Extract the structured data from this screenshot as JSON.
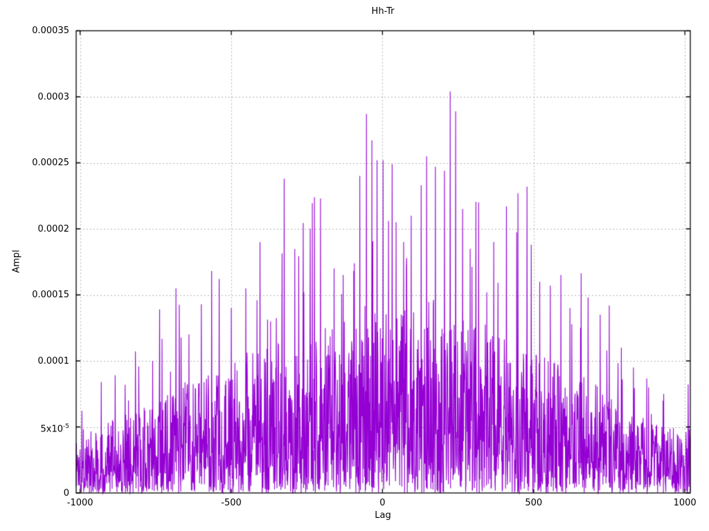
{
  "title": "Hh-Tr",
  "chart_data": {
    "type": "line",
    "style": "dense noisy impulse-like trace (autocorrelation magnitude)",
    "title": "Hh-Tr",
    "xlabel": "Lag",
    "ylabel": "Ampl",
    "xlim": [
      -1013,
      1018
    ],
    "ylim": [
      0,
      0.00035
    ],
    "x_ticks": [
      {
        "v": -1000,
        "label": "-1000"
      },
      {
        "v": -500,
        "label": "-500"
      },
      {
        "v": 0,
        "label": "0"
      },
      {
        "v": 500,
        "label": "500"
      },
      {
        "v": 1000,
        "label": "1000"
      }
    ],
    "y_ticks": [
      {
        "v": 0,
        "label": "0"
      },
      {
        "v": 5e-05,
        "label": "5x10^-5"
      },
      {
        "v": 0.0001,
        "label": "0.0001"
      },
      {
        "v": 0.00015,
        "label": "0.00015"
      },
      {
        "v": 0.0002,
        "label": "0.0002"
      },
      {
        "v": 0.00025,
        "label": "0.00025"
      },
      {
        "v": 0.0003,
        "label": "0.0003"
      },
      {
        "v": 0.00035,
        "label": "0.00035"
      }
    ],
    "grid": true,
    "legend": "none",
    "line_color": "#9400d3",
    "grid_color": "#b2b2b2",
    "border_color": "#000000",
    "background_color": "#ffffff",
    "n_points": 2032,
    "seed": 1337,
    "noise_exponent": 1.35,
    "spike_probability": 0.02,
    "envelope_keypoints": [
      [
        -1015,
        5e-05
      ],
      [
        -900,
        5.5e-05
      ],
      [
        -800,
        6.5e-05
      ],
      [
        -700,
        8e-05
      ],
      [
        -600,
        9e-05
      ],
      [
        -500,
        0.0001
      ],
      [
        -420,
        0.00011
      ],
      [
        -350,
        0.000115
      ],
      [
        -250,
        0.00012
      ],
      [
        -150,
        0.00013
      ],
      [
        -60,
        0.00015
      ],
      [
        0,
        0.00014
      ],
      [
        80,
        0.00014
      ],
      [
        180,
        0.00015
      ],
      [
        250,
        0.00014
      ],
      [
        320,
        0.00013
      ],
      [
        400,
        0.00012
      ],
      [
        480,
        0.00011
      ],
      [
        560,
        0.0001
      ],
      [
        650,
        9e-05
      ],
      [
        720,
        8e-05
      ],
      [
        800,
        6.5e-05
      ],
      [
        880,
        5.5e-05
      ],
      [
        950,
        5e-05
      ],
      [
        1020,
        4.8e-05
      ]
    ],
    "notable_peaks": [
      [
        -930,
        8.4e-05
      ],
      [
        -840,
        7e-05
      ],
      [
        -760,
        0.0001
      ],
      [
        -683,
        0.000155
      ],
      [
        -640,
        0.00012
      ],
      [
        -565,
        0.000168
      ],
      [
        -540,
        0.000162
      ],
      [
        -500,
        0.00014
      ],
      [
        -452,
        0.000155
      ],
      [
        -415,
        0.000146
      ],
      [
        -370,
        0.00013
      ],
      [
        -325,
        0.000238
      ],
      [
        -260,
        0.000152
      ],
      [
        -225,
        0.000224
      ],
      [
        -205,
        0.000223
      ],
      [
        -160,
        0.00017
      ],
      [
        -130,
        0.000165
      ],
      [
        -95,
        0.000168
      ],
      [
        -75,
        0.00024
      ],
      [
        -53,
        0.000287
      ],
      [
        -35,
        0.000267
      ],
      [
        -18,
        0.000252
      ],
      [
        2,
        0.000252
      ],
      [
        20,
        0.000206
      ],
      [
        45,
        0.000205
      ],
      [
        70,
        0.00019
      ],
      [
        95,
        0.00021
      ],
      [
        128,
        0.000233
      ],
      [
        146,
        0.000255
      ],
      [
        175,
        0.000247
      ],
      [
        205,
        0.000244
      ],
      [
        224,
        0.000304
      ],
      [
        242,
        0.000289
      ],
      [
        265,
        0.000215
      ],
      [
        290,
        0.000185
      ],
      [
        318,
        0.00022
      ],
      [
        345,
        0.000152
      ],
      [
        368,
        0.00019
      ],
      [
        410,
        0.000217
      ],
      [
        448,
        0.000227
      ],
      [
        478,
        0.000232
      ],
      [
        492,
        0.000188
      ],
      [
        520,
        0.00016
      ],
      [
        555,
        0.000157
      ],
      [
        590,
        0.000165
      ],
      [
        620,
        0.00014
      ],
      [
        655,
        0.000125
      ],
      [
        680,
        0.000148
      ],
      [
        720,
        0.000135
      ],
      [
        750,
        0.000142
      ],
      [
        790,
        0.00011
      ],
      [
        830,
        9.5e-05
      ],
      [
        880,
        8e-05
      ],
      [
        930,
        7.5e-05
      ]
    ]
  }
}
